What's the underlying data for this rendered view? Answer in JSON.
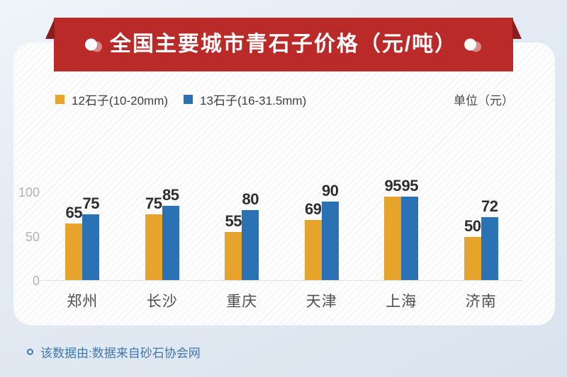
{
  "title": "全国主要城市青石子价格（元/吨）",
  "legend": {
    "series1": "12石子(10-20mm)",
    "series2": "13石子(16-31.5mm)",
    "unit": "单位（元）"
  },
  "footnote": "该数据由:数据来自砂石协会网",
  "colors": {
    "ribbon": "#b92a28",
    "ribbon_fold": "#8c1c1c",
    "series1": "#e7a42c",
    "series2": "#2b72b5",
    "value_label": "#2e2e2e",
    "axis_tick": "#b3b3b3",
    "city_label": "#4f4f4f",
    "note": "#4277ad",
    "page_bg": "#dfe7f1",
    "card_bg": "#fdfdfd"
  },
  "chart_data": {
    "type": "bar",
    "title": "全国主要城市青石子价格（元/吨）",
    "categories": [
      "郑州",
      "长沙",
      "重庆",
      "天津",
      "上海",
      "济南"
    ],
    "series": [
      {
        "name": "12石子(10-20mm)",
        "color": "#e7a42c",
        "values": [
          65,
          75,
          55,
          69,
          95,
          50
        ]
      },
      {
        "name": "13石子(16-31.5mm)",
        "color": "#2b72b5",
        "values": [
          75,
          85,
          80,
          90,
          95,
          72
        ]
      }
    ],
    "xlabel": "",
    "ylabel": "",
    "unit": "元/吨",
    "ylim": [
      0,
      100
    ],
    "yticks": [
      0,
      50,
      100
    ],
    "grid": false,
    "legend_position": "top"
  }
}
